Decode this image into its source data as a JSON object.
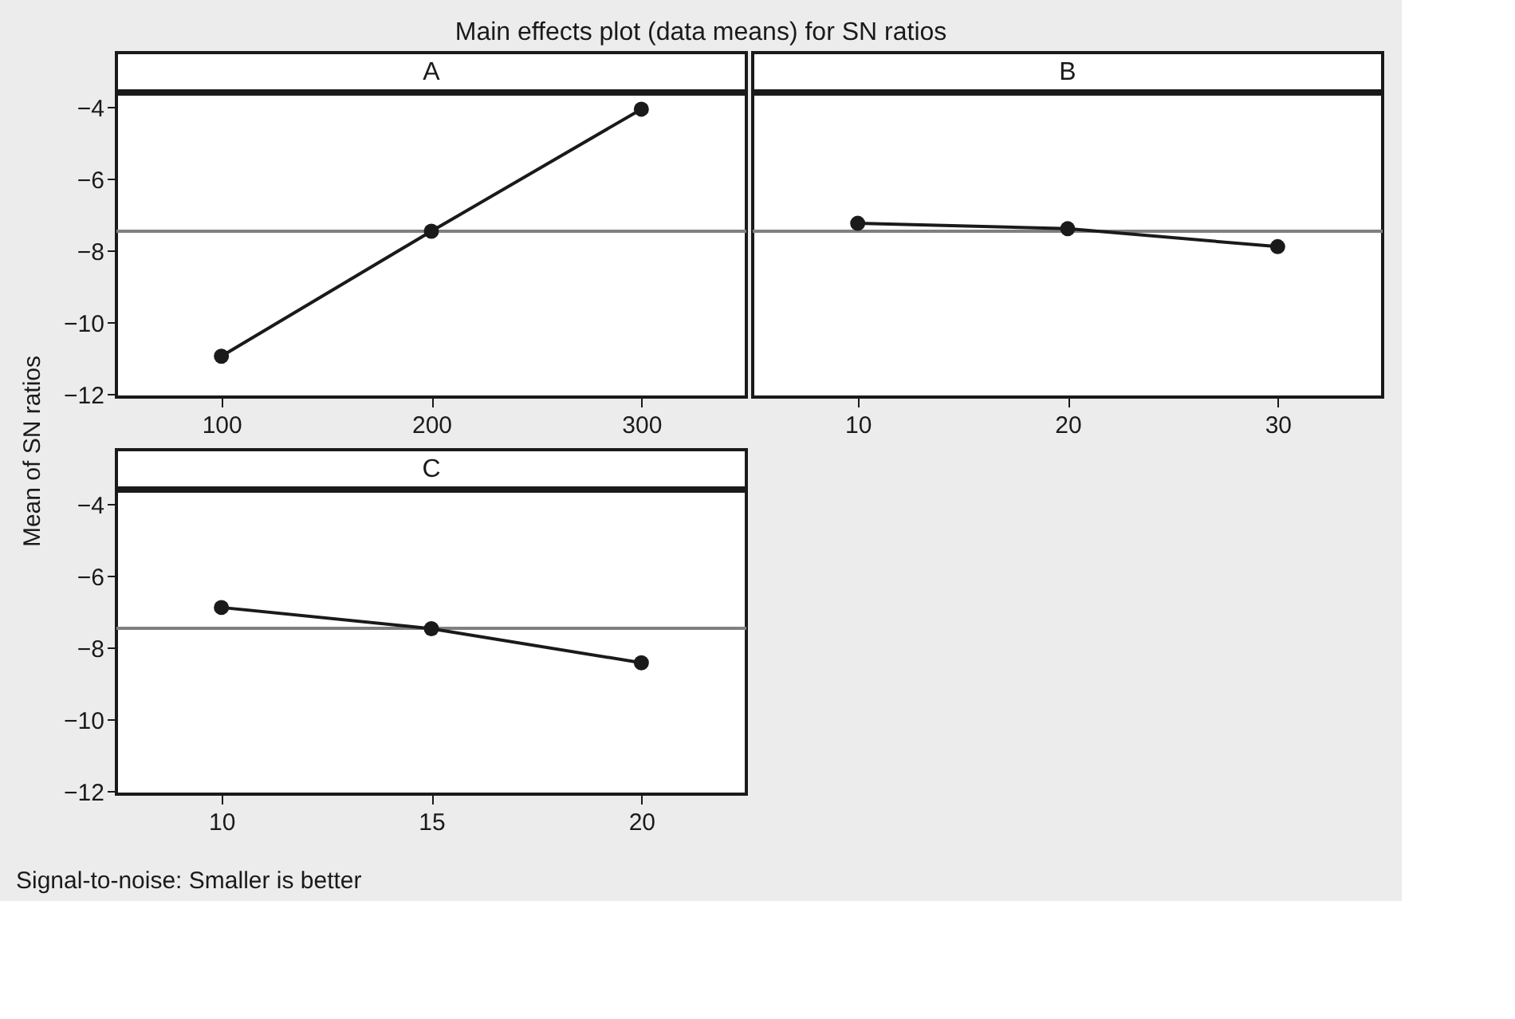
{
  "chart_data": [
    {
      "type": "line",
      "title": "Main effects plot (data means) for SN ratios",
      "xlabel": "A",
      "ylabel": "Mean of SN ratios",
      "annotations": [
        "Signal-to-noise: Smaller is better"
      ],
      "x": [
        100,
        200,
        300
      ],
      "series": [
        {
          "color": "#1a1a1a",
          "values": [
            -10.93,
            -7.45,
            -4.05
          ]
        }
      ],
      "xlim": [
        50,
        350
      ],
      "xticks": [
        100,
        200,
        300
      ],
      "ylim": [
        -12.07,
        -3.63
      ],
      "yticks": [
        {
          "value": -12,
          "label": "−12"
        },
        {
          "value": -10,
          "label": "−10"
        },
        {
          "value": -8,
          "label": "−8"
        },
        {
          "value": -6,
          "label": "−6"
        },
        {
          "value": -4,
          "label": "−4"
        }
      ],
      "ref_lines": [
        {
          "axis": "y",
          "value": -7.45,
          "color": "#808080"
        }
      ],
      "grid": false,
      "marker": "circle",
      "line_style": "solid"
    },
    {
      "type": "line",
      "xlabel": "B",
      "x": [
        10,
        20,
        30
      ],
      "series": [
        {
          "color": "#1a1a1a",
          "values": [
            -7.23,
            -7.38,
            -7.88
          ]
        }
      ],
      "xlim": [
        5,
        35
      ],
      "xticks": [
        10,
        20,
        30
      ],
      "ylim": [
        -12.07,
        -3.63
      ],
      "tick_labels": "x",
      "ref_lines": [
        {
          "axis": "y",
          "value": -7.45,
          "color": "#808080"
        }
      ],
      "grid": false,
      "marker": "circle",
      "line_style": "solid"
    },
    {
      "type": "line",
      "xlabel": "C",
      "x": [
        10,
        15,
        20
      ],
      "series": [
        {
          "color": "#1a1a1a",
          "values": [
            -6.87,
            -7.46,
            -8.41
          ]
        }
      ],
      "xlim": [
        7.5,
        22.5
      ],
      "xticks": [
        10,
        15,
        20
      ],
      "ylim": [
        -12.07,
        -3.63
      ],
      "yticks": [
        {
          "value": -12,
          "label": "−12"
        },
        {
          "value": -10,
          "label": "−10"
        },
        {
          "value": -8,
          "label": "−8"
        },
        {
          "value": -6,
          "label": "−6"
        },
        {
          "value": -4,
          "label": "−4"
        }
      ],
      "ref_lines": [
        {
          "axis": "y",
          "value": -7.45,
          "color": "#808080"
        }
      ],
      "grid": false,
      "marker": "circle",
      "line_style": "solid"
    }
  ]
}
